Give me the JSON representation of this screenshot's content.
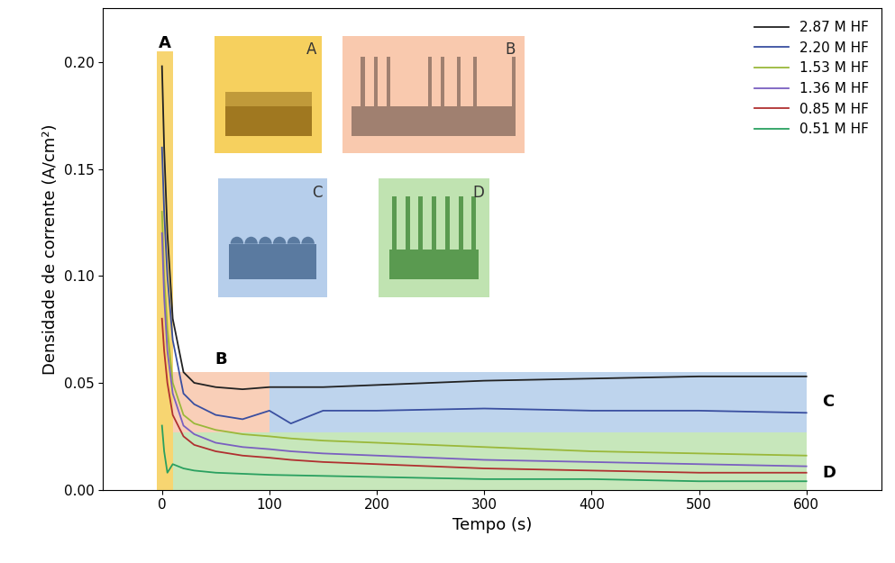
{
  "chart_data": {
    "type": "line",
    "x_label": "Tempo (s)",
    "y_label": "Densidade de corrente (A/cm²)",
    "x": [
      0,
      2,
      5,
      10,
      20,
      30,
      50,
      75,
      100,
      120,
      150,
      200,
      300,
      400,
      500,
      600
    ],
    "series": [
      {
        "name": "2.87 M HF",
        "color": "#222222",
        "values": [
          0.198,
          0.16,
          0.12,
          0.08,
          0.055,
          0.05,
          0.048,
          0.047,
          0.048,
          0.048,
          0.048,
          0.049,
          0.051,
          0.052,
          0.053,
          0.053
        ]
      },
      {
        "name": "2.20 M HF",
        "color": "#3a4fa0",
        "values": [
          0.16,
          0.13,
          0.1,
          0.07,
          0.045,
          0.04,
          0.035,
          0.033,
          0.037,
          0.031,
          0.037,
          0.037,
          0.038,
          0.037,
          0.037,
          0.036
        ]
      },
      {
        "name": "1.53 M HF",
        "color": "#9ab83a",
        "values": [
          0.13,
          0.1,
          0.075,
          0.05,
          0.035,
          0.031,
          0.028,
          0.026,
          0.025,
          0.024,
          0.023,
          0.022,
          0.02,
          0.018,
          0.017,
          0.016
        ]
      },
      {
        "name": "1.36 M HF",
        "color": "#7a5fc0",
        "values": [
          0.12,
          0.09,
          0.065,
          0.045,
          0.03,
          0.026,
          0.022,
          0.02,
          0.019,
          0.018,
          0.017,
          0.016,
          0.014,
          0.013,
          0.012,
          0.011
        ]
      },
      {
        "name": "0.85 M HF",
        "color": "#b03030",
        "values": [
          0.08,
          0.065,
          0.05,
          0.035,
          0.025,
          0.021,
          0.018,
          0.016,
          0.015,
          0.014,
          0.013,
          0.012,
          0.01,
          0.009,
          0.008,
          0.008
        ]
      },
      {
        "name": "0.51 M HF",
        "color": "#2aa060",
        "values": [
          0.03,
          0.018,
          0.008,
          0.012,
          0.01,
          0.009,
          0.008,
          0.0075,
          0.007,
          0.0068,
          0.0065,
          0.006,
          0.005,
          0.005,
          0.004,
          0.004
        ]
      }
    ],
    "regions": [
      {
        "label": "A",
        "x": [
          -5,
          10
        ],
        "y": [
          0,
          0.205
        ],
        "color": "#f5c842"
      },
      {
        "label": "B",
        "x": [
          10,
          100
        ],
        "y": [
          0.027,
          0.055
        ],
        "color": "#f8c0a0"
      },
      {
        "label": "C",
        "x": [
          100,
          600
        ],
        "y": [
          0.027,
          0.055
        ],
        "color": "#a9c6e8"
      },
      {
        "label": "D",
        "x": [
          10,
          600
        ],
        "y": [
          0,
          0.027
        ],
        "color": "#b5dfa4"
      }
    ],
    "xlim": [
      -55,
      670
    ],
    "ylim": [
      0,
      0.225
    ],
    "xticks": [
      0,
      100,
      200,
      300,
      400,
      500,
      600
    ],
    "yticks": [
      {
        "value": 0,
        "label": "0.00"
      },
      {
        "value": 0.05,
        "label": "0.05"
      },
      {
        "value": 0.1,
        "label": "0.10"
      },
      {
        "value": 0.15,
        "label": "0.15"
      },
      {
        "value": 0.2,
        "label": "0.20"
      }
    ],
    "grid": false,
    "legend": "upper right"
  }
}
